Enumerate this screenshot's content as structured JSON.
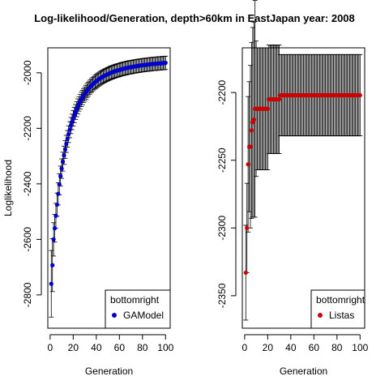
{
  "figure": {
    "title": "Log-likelihood/Generation, depth>60km in EastJapan year: 2008"
  },
  "chart_data": [
    {
      "type": "scatter",
      "panel": "left",
      "xlabel": "Generation",
      "ylabel": "Loglikelihood",
      "xlim": [
        -2,
        104
      ],
      "ylim": [
        -2920,
        -1910
      ],
      "xticks": [
        0,
        20,
        40,
        60,
        80,
        100
      ],
      "yticks": [
        -2800,
        -2600,
        -2400,
        -2200,
        -2000
      ],
      "grid": false,
      "legend": {
        "position": "bottom-right",
        "title": "bottomright",
        "entries": [
          {
            "label": "GAModel",
            "color": "#0000cc"
          }
        ]
      },
      "series": [
        {
          "name": "GAModel",
          "color": "#0000cc",
          "error_color": "#000000",
          "x": [
            1,
            2,
            3,
            4,
            5,
            6,
            7,
            8,
            9,
            10,
            11,
            12,
            13,
            14,
            15,
            16,
            17,
            18,
            19,
            20,
            21,
            22,
            23,
            24,
            25,
            26,
            27,
            28,
            29,
            30,
            31,
            32,
            33,
            34,
            35,
            36,
            37,
            38,
            39,
            40,
            41,
            42,
            43,
            44,
            45,
            46,
            47,
            48,
            49,
            50,
            51,
            52,
            53,
            54,
            55,
            56,
            57,
            58,
            59,
            60,
            61,
            62,
            63,
            64,
            65,
            66,
            67,
            68,
            69,
            70,
            71,
            72,
            73,
            74,
            75,
            76,
            77,
            78,
            79,
            80,
            81,
            82,
            83,
            84,
            85,
            86,
            87,
            88,
            89,
            90,
            91,
            92,
            93,
            94,
            95,
            96,
            97,
            98,
            99,
            100
          ],
          "y": [
            -2760,
            -2693,
            -2600,
            -2560,
            -2515,
            -2475,
            -2436,
            -2402,
            -2372,
            -2345,
            -2320,
            -2297,
            -2276,
            -2256,
            -2238,
            -2221,
            -2205,
            -2190,
            -2177,
            -2164,
            -2152,
            -2141,
            -2131,
            -2121,
            -2112,
            -2104,
            -2096,
            -2089,
            -2082,
            -2076,
            -2070,
            -2064,
            -2059,
            -2054,
            -2049,
            -2045,
            -2041,
            -2037,
            -2033,
            -2030,
            -2027,
            -2024,
            -2021,
            -2018,
            -2016,
            -2013,
            -2011,
            -2009,
            -2007,
            -2005,
            -2003,
            -2001,
            -1999,
            -1998,
            -1996,
            -1995,
            -1993,
            -1992,
            -1991,
            -1990,
            -1988,
            -1987,
            -1986,
            -1985,
            -1984,
            -1983,
            -1982,
            -1981,
            -1980,
            -1980,
            -1979,
            -1978,
            -1977,
            -1977,
            -1976,
            -1975,
            -1975,
            -1974,
            -1973,
            -1973,
            -1972,
            -1972,
            -1971,
            -1971,
            -1970,
            -1970,
            -1969,
            -1969,
            -1968,
            -1968,
            -1968,
            -1967,
            -1967,
            -1966,
            -1966,
            -1966,
            -1965,
            -1965,
            -1965,
            -1964
          ],
          "error": [
            120,
            95,
            60,
            50,
            45,
            42,
            40,
            38,
            36,
            35,
            34,
            33,
            32,
            31,
            30,
            30,
            29,
            29,
            28,
            28,
            28,
            27,
            27,
            27,
            26,
            26,
            26,
            26,
            25,
            25,
            25,
            25,
            25,
            24,
            24,
            24,
            24,
            24,
            24,
            24,
            24,
            24,
            24,
            24,
            24,
            24,
            24,
            24,
            24,
            24,
            24,
            24,
            24,
            24,
            24,
            24,
            24,
            24,
            24,
            24,
            24,
            24,
            24,
            24,
            24,
            24,
            24,
            24,
            24,
            24,
            24,
            24,
            24,
            24,
            24,
            24,
            24,
            24,
            24,
            24,
            24,
            24,
            24,
            24,
            24,
            24,
            24,
            24,
            24,
            24,
            24,
            24,
            24,
            24,
            24,
            24,
            24,
            24,
            24,
            24
          ]
        }
      ]
    },
    {
      "type": "scatter",
      "panel": "right",
      "xlabel": "Generation",
      "ylabel": "",
      "xlim": [
        -2,
        104
      ],
      "ylim": [
        -2374,
        -2167
      ],
      "xticks": [
        0,
        20,
        40,
        60,
        80,
        100
      ],
      "yticks": [
        -2350,
        -2300,
        -2250,
        -2200
      ],
      "grid": false,
      "legend": {
        "position": "bottom-right",
        "title": "bottomright",
        "entries": [
          {
            "label": "Listas",
            "color": "#cc0000"
          }
        ]
      },
      "series": [
        {
          "name": "Listas",
          "color": "#cc0000",
          "error_color": "#000000",
          "x": [
            1,
            2,
            3,
            4,
            5,
            6,
            7,
            8,
            9,
            10,
            11,
            12,
            13,
            14,
            15,
            16,
            17,
            18,
            19,
            20,
            21,
            22,
            23,
            24,
            25,
            26,
            27,
            28,
            29,
            30,
            31,
            32,
            33,
            34,
            35,
            36,
            37,
            38,
            39,
            40,
            41,
            42,
            43,
            44,
            45,
            46,
            47,
            48,
            49,
            50,
            51,
            52,
            53,
            54,
            55,
            56,
            57,
            58,
            59,
            60,
            61,
            62,
            63,
            64,
            65,
            66,
            67,
            68,
            69,
            70,
            71,
            72,
            73,
            74,
            75,
            76,
            77,
            78,
            79,
            80,
            81,
            82,
            83,
            84,
            85,
            86,
            87,
            88,
            89,
            90,
            91,
            92,
            93,
            94,
            95,
            96,
            97,
            98,
            99,
            100
          ],
          "y": [
            -2333,
            -2300,
            -2253,
            -2240,
            -2240,
            -2228,
            -2222,
            -2220,
            -2212,
            -2212,
            -2212,
            -2212,
            -2212,
            -2212,
            -2212,
            -2212,
            -2212,
            -2212,
            -2212,
            -2212,
            -2205,
            -2205,
            -2205,
            -2205,
            -2205,
            -2205,
            -2205,
            -2205,
            -2205,
            -2205,
            -2202,
            -2202,
            -2202,
            -2202,
            -2202,
            -2202,
            -2202,
            -2202,
            -2202,
            -2202,
            -2202,
            -2202,
            -2202,
            -2202,
            -2202,
            -2202,
            -2202,
            -2202,
            -2202,
            -2202,
            -2202,
            -2202,
            -2202,
            -2202,
            -2202,
            -2202,
            -2202,
            -2202,
            -2202,
            -2202,
            -2202,
            -2202,
            -2202,
            -2202,
            -2202,
            -2202,
            -2202,
            -2202,
            -2202,
            -2202,
            -2202,
            -2202,
            -2202,
            -2202,
            -2202,
            -2202,
            -2202,
            -2202,
            -2202,
            -2202,
            -2202,
            -2202,
            -2202,
            -2202,
            -2202,
            -2202,
            -2202,
            -2202,
            -2202,
            -2202,
            -2202,
            -2202,
            -2202,
            -2202,
            -2202,
            -2202,
            -2202,
            -2202,
            -2202,
            -2202
          ],
          "error": [
            35,
            33,
            50,
            48,
            60,
            65,
            70,
            72,
            80,
            50,
            45,
            45,
            45,
            45,
            45,
            45,
            45,
            45,
            45,
            45,
            40,
            40,
            40,
            40,
            40,
            40,
            40,
            40,
            40,
            40,
            30,
            30,
            30,
            30,
            30,
            30,
            30,
            30,
            30,
            30,
            30,
            30,
            30,
            30,
            30,
            30,
            30,
            30,
            30,
            30,
            30,
            30,
            30,
            30,
            30,
            30,
            30,
            30,
            30,
            30,
            30,
            30,
            30,
            30,
            30,
            30,
            30,
            30,
            30,
            30,
            30,
            30,
            30,
            30,
            30,
            30,
            30,
            30,
            30,
            30,
            30,
            30,
            30,
            30,
            30,
            30,
            30,
            30,
            30,
            30,
            30,
            30,
            30,
            30,
            30,
            30,
            30,
            30,
            30,
            30
          ]
        }
      ]
    }
  ]
}
